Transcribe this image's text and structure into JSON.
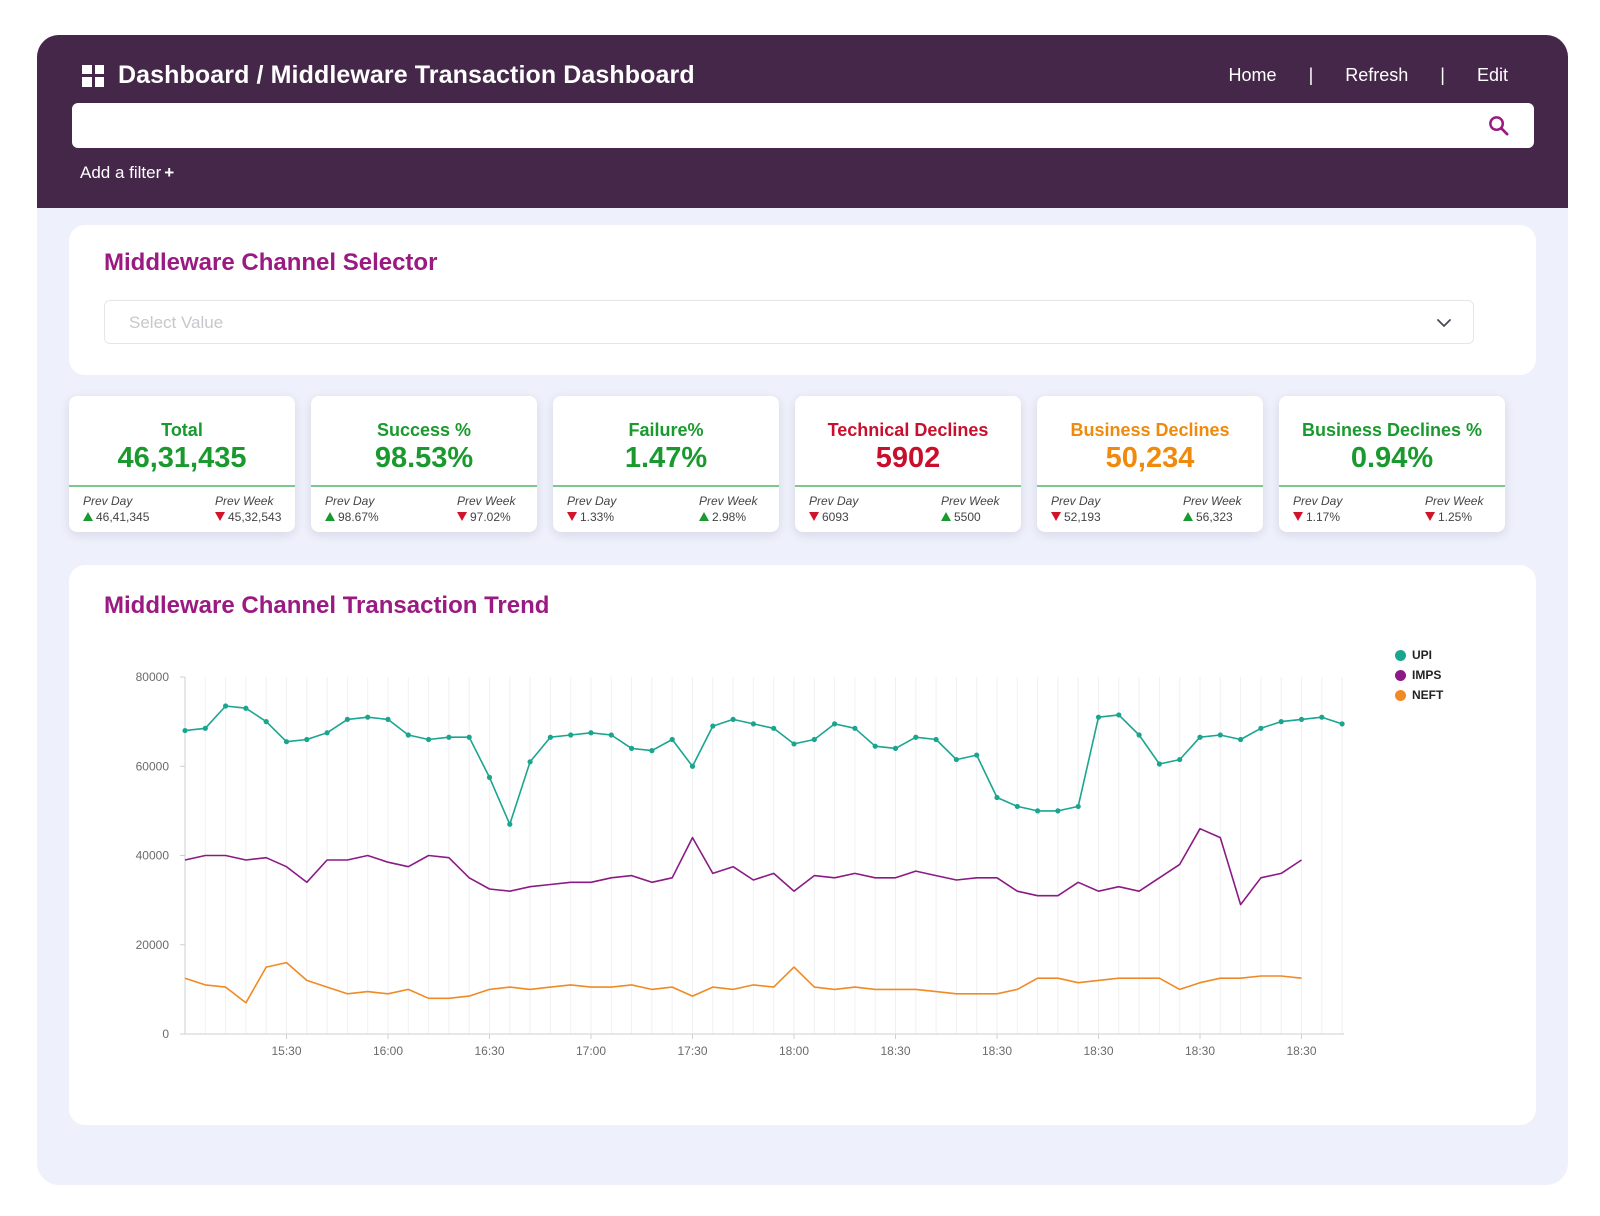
{
  "header": {
    "title": "Dashboard / Middleware Transaction Dashboard",
    "nav": [
      "Home",
      "Refresh",
      "Edit"
    ],
    "nav_separator": "|",
    "search_placeholder": "",
    "add_filter_label": "Add a filter",
    "add_filter_plus": "+"
  },
  "selector": {
    "title": "Middleware Channel Selector",
    "placeholder": "Select Value"
  },
  "kpis": [
    {
      "label": "Total",
      "value": "46,31,435",
      "color": "#1a9a2e",
      "prev_day_caption": "Prev Day",
      "prev_day": "46,41,345",
      "prev_day_dir": "up",
      "prev_week_caption": "Prev Week",
      "prev_week": "45,32,543",
      "prev_week_dir": "down"
    },
    {
      "label": "Success %",
      "value": "98.53%",
      "color": "#1a9a2e",
      "prev_day_caption": "Prev Day",
      "prev_day": "98.67%",
      "prev_day_dir": "up",
      "prev_week_caption": "Prev Week",
      "prev_week": "97.02%",
      "prev_week_dir": "down"
    },
    {
      "label": "Failure%",
      "value": "1.47%",
      "color": "#1a9a2e",
      "prev_day_caption": "Prev Day",
      "prev_day": "1.33%",
      "prev_day_dir": "down",
      "prev_week_caption": "Prev Week",
      "prev_week": "2.98%",
      "prev_week_dir": "up"
    },
    {
      "label": "Technical Declines",
      "value": "5902",
      "color": "#c8102e",
      "prev_day_caption": "Prev Day",
      "prev_day": "6093",
      "prev_day_dir": "down",
      "prev_week_caption": "Prev Week",
      "prev_week": "5500",
      "prev_week_dir": "up"
    },
    {
      "label": "Business Declines",
      "value": "50,234",
      "color": "#f08a0c",
      "prev_day_caption": "Prev Day",
      "prev_day": "52,193",
      "prev_day_dir": "down",
      "prev_week_caption": "Prev Week",
      "prev_week": "56,323",
      "prev_week_dir": "up"
    },
    {
      "label": "Business Declines %",
      "value": "0.94%",
      "color": "#1a9a2e",
      "prev_day_caption": "Prev Day",
      "prev_day": "1.17%",
      "prev_day_dir": "down",
      "prev_week_caption": "Prev Week",
      "prev_week": "1.25%",
      "prev_week_dir": "down"
    }
  ],
  "trend": {
    "title": "Middleware Channel Transaction Trend"
  },
  "chart_data": {
    "type": "line",
    "title": "Middleware Channel Transaction Trend",
    "xlabel": "",
    "ylabel": "",
    "ylim": [
      0,
      80000
    ],
    "yticks": [
      "0",
      "20000",
      "40000",
      "60000",
      "80000"
    ],
    "x_tick_labels": [
      "15:30",
      "16:00",
      "16:30",
      "17:00",
      "17:30",
      "18:00",
      "18:30",
      "18:30",
      "18:30",
      "18:30",
      "18:30"
    ],
    "legend_position": "top-right",
    "series": [
      {
        "name": "UPI",
        "color": "#1aa58f",
        "markers": true,
        "values": [
          68000,
          68500,
          73500,
          73000,
          70000,
          65500,
          66000,
          67500,
          70500,
          71000,
          70500,
          67000,
          66000,
          66500,
          66500,
          57500,
          47000,
          61000,
          66500,
          67000,
          67500,
          67000,
          64000,
          63500,
          66000,
          60000,
          69000,
          70500,
          69500,
          68500,
          65000,
          66000,
          69500,
          68500,
          64500,
          64000,
          66500,
          66000,
          61500,
          62500,
          53000,
          51000,
          50000,
          50000,
          51000,
          71000,
          71500,
          67000,
          60500,
          61500,
          66500,
          67000,
          66000,
          68500,
          70000,
          70500,
          71000,
          69500
        ]
      },
      {
        "name": "IMPS",
        "color": "#8b1a84",
        "markers": false,
        "values": [
          39000,
          40000,
          40000,
          39000,
          39500,
          37500,
          34000,
          39000,
          39000,
          40000,
          38500,
          37500,
          40000,
          39500,
          35000,
          32500,
          32000,
          33000,
          33500,
          34000,
          34000,
          35000,
          35500,
          34000,
          35000,
          44000,
          36000,
          37500,
          34500,
          36000,
          32000,
          35500,
          35000,
          36000,
          35000,
          35000,
          36500,
          35500,
          34500,
          35000,
          35000,
          32000,
          31000,
          31000,
          34000,
          32000,
          33000,
          32000,
          35000,
          38000,
          46000,
          44000,
          29000,
          35000,
          36000,
          39000
        ]
      },
      {
        "name": "NEFT",
        "color": "#f08a24",
        "markers": false,
        "values": [
          12500,
          11000,
          10500,
          7000,
          15000,
          16000,
          12000,
          10500,
          9000,
          9500,
          9000,
          10000,
          8000,
          8000,
          8500,
          10000,
          10500,
          10000,
          10500,
          11000,
          10500,
          10500,
          11000,
          10000,
          10500,
          8500,
          10500,
          10000,
          11000,
          10500,
          15000,
          10500,
          10000,
          10500,
          10000,
          10000,
          10000,
          9500,
          9000,
          9000,
          9000,
          10000,
          12500,
          12500,
          11500,
          12000,
          12500,
          12500,
          12500,
          10000,
          11500,
          12500,
          12500,
          13000,
          13000,
          12500
        ]
      }
    ]
  }
}
